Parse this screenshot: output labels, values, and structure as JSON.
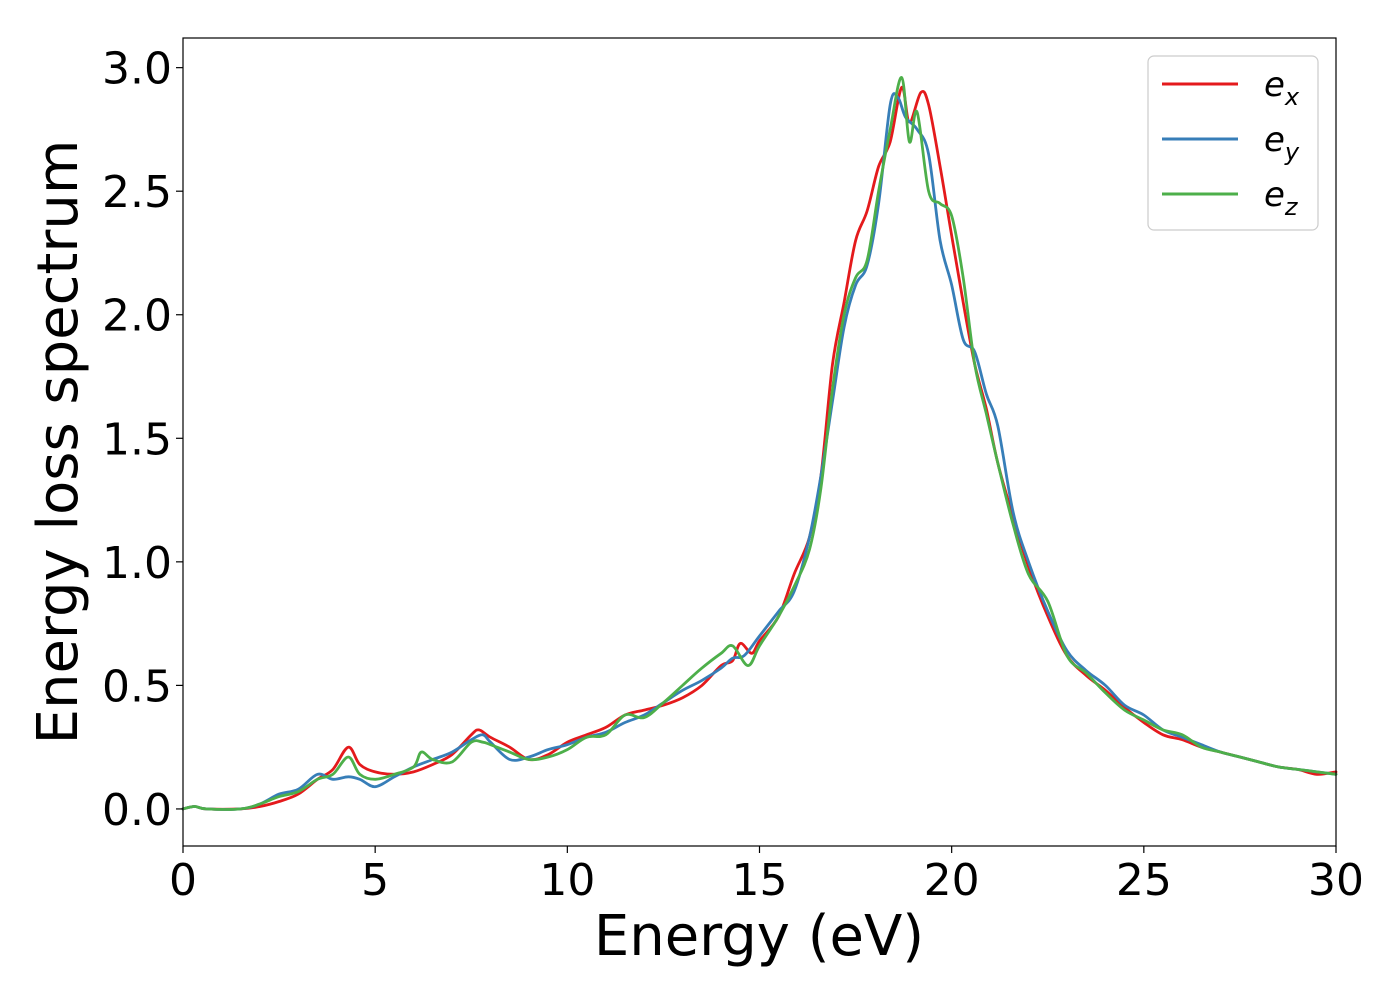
{
  "chart_data": {
    "type": "line",
    "title": "",
    "xlabel": "Energy (eV)",
    "ylabel": "Energy loss spectrum",
    "xlim": [
      0,
      30
    ],
    "ylim": [
      -0.15,
      3.12
    ],
    "xticks": [
      0,
      5,
      10,
      15,
      20,
      25,
      30
    ],
    "xtick_labels": [
      "0",
      "5",
      "10",
      "15",
      "20",
      "25",
      "30"
    ],
    "yticks": [
      0.0,
      0.5,
      1.0,
      1.5,
      2.0,
      2.5,
      3.0
    ],
    "ytick_labels": [
      "0.0",
      "0.5",
      "1.0",
      "1.5",
      "2.0",
      "2.5",
      "3.0"
    ],
    "grid": false,
    "legend_position": "top-right",
    "series": [
      {
        "name": "ex",
        "label_base": "e",
        "label_sub": "x",
        "color": "#e41a1c",
        "points": [
          [
            0,
            0.0
          ],
          [
            0.3,
            0.01
          ],
          [
            0.6,
            0.0
          ],
          [
            1.5,
            0.0
          ],
          [
            2.0,
            0.01
          ],
          [
            2.5,
            0.03
          ],
          [
            3.0,
            0.06
          ],
          [
            3.5,
            0.12
          ],
          [
            3.9,
            0.16
          ],
          [
            4.3,
            0.25
          ],
          [
            4.6,
            0.18
          ],
          [
            5.0,
            0.15
          ],
          [
            5.5,
            0.14
          ],
          [
            6.0,
            0.15
          ],
          [
            6.5,
            0.18
          ],
          [
            7.0,
            0.22
          ],
          [
            7.5,
            0.3
          ],
          [
            7.7,
            0.32
          ],
          [
            8.0,
            0.29
          ],
          [
            8.5,
            0.25
          ],
          [
            9.0,
            0.2
          ],
          [
            9.5,
            0.22
          ],
          [
            10.0,
            0.27
          ],
          [
            10.5,
            0.3
          ],
          [
            11.0,
            0.33
          ],
          [
            11.5,
            0.38
          ],
          [
            12.0,
            0.4
          ],
          [
            12.5,
            0.42
          ],
          [
            13.0,
            0.45
          ],
          [
            13.5,
            0.5
          ],
          [
            14.0,
            0.58
          ],
          [
            14.3,
            0.6
          ],
          [
            14.5,
            0.67
          ],
          [
            14.8,
            0.63
          ],
          [
            15.0,
            0.68
          ],
          [
            15.5,
            0.78
          ],
          [
            15.9,
            0.95
          ],
          [
            16.3,
            1.1
          ],
          [
            16.6,
            1.35
          ],
          [
            16.9,
            1.8
          ],
          [
            17.2,
            2.05
          ],
          [
            17.5,
            2.3
          ],
          [
            17.8,
            2.42
          ],
          [
            18.1,
            2.6
          ],
          [
            18.4,
            2.7
          ],
          [
            18.7,
            2.92
          ],
          [
            18.9,
            2.78
          ],
          [
            19.2,
            2.9
          ],
          [
            19.4,
            2.85
          ],
          [
            19.7,
            2.6
          ],
          [
            20.0,
            2.32
          ],
          [
            20.3,
            2.05
          ],
          [
            20.6,
            1.8
          ],
          [
            20.9,
            1.62
          ],
          [
            21.2,
            1.4
          ],
          [
            21.6,
            1.18
          ],
          [
            22.0,
            0.98
          ],
          [
            22.5,
            0.78
          ],
          [
            23.0,
            0.62
          ],
          [
            23.5,
            0.54
          ],
          [
            24.0,
            0.48
          ],
          [
            24.5,
            0.41
          ],
          [
            25.0,
            0.35
          ],
          [
            25.5,
            0.3
          ],
          [
            26.0,
            0.28
          ],
          [
            26.5,
            0.25
          ],
          [
            27.0,
            0.23
          ],
          [
            27.5,
            0.21
          ],
          [
            28.0,
            0.19
          ],
          [
            28.5,
            0.17
          ],
          [
            29.0,
            0.16
          ],
          [
            29.5,
            0.14
          ],
          [
            30.0,
            0.15
          ]
        ]
      },
      {
        "name": "ey",
        "label_base": "e",
        "label_sub": "y",
        "color": "#377eb8",
        "points": [
          [
            0,
            0.0
          ],
          [
            0.3,
            0.01
          ],
          [
            0.6,
            0.0
          ],
          [
            1.5,
            0.0
          ],
          [
            2.0,
            0.02
          ],
          [
            2.5,
            0.06
          ],
          [
            3.0,
            0.08
          ],
          [
            3.5,
            0.14
          ],
          [
            3.9,
            0.12
          ],
          [
            4.3,
            0.13
          ],
          [
            4.6,
            0.12
          ],
          [
            5.0,
            0.09
          ],
          [
            5.5,
            0.13
          ],
          [
            6.0,
            0.17
          ],
          [
            6.5,
            0.2
          ],
          [
            7.0,
            0.23
          ],
          [
            7.5,
            0.28
          ],
          [
            7.8,
            0.3
          ],
          [
            8.0,
            0.27
          ],
          [
            8.5,
            0.2
          ],
          [
            9.0,
            0.21
          ],
          [
            9.5,
            0.24
          ],
          [
            10.0,
            0.26
          ],
          [
            10.5,
            0.29
          ],
          [
            11.0,
            0.31
          ],
          [
            11.5,
            0.35
          ],
          [
            12.0,
            0.38
          ],
          [
            12.5,
            0.43
          ],
          [
            13.0,
            0.48
          ],
          [
            13.5,
            0.52
          ],
          [
            14.0,
            0.57
          ],
          [
            14.3,
            0.61
          ],
          [
            14.6,
            0.62
          ],
          [
            15.0,
            0.7
          ],
          [
            15.5,
            0.8
          ],
          [
            15.9,
            0.88
          ],
          [
            16.3,
            1.1
          ],
          [
            16.6,
            1.35
          ],
          [
            16.9,
            1.65
          ],
          [
            17.2,
            1.95
          ],
          [
            17.5,
            2.12
          ],
          [
            17.8,
            2.2
          ],
          [
            18.1,
            2.45
          ],
          [
            18.4,
            2.85
          ],
          [
            18.6,
            2.88
          ],
          [
            18.8,
            2.8
          ],
          [
            19.1,
            2.75
          ],
          [
            19.4,
            2.65
          ],
          [
            19.7,
            2.3
          ],
          [
            20.0,
            2.12
          ],
          [
            20.3,
            1.9
          ],
          [
            20.6,
            1.85
          ],
          [
            20.9,
            1.68
          ],
          [
            21.2,
            1.55
          ],
          [
            21.6,
            1.2
          ],
          [
            22.0,
            1.0
          ],
          [
            22.5,
            0.8
          ],
          [
            23.0,
            0.64
          ],
          [
            23.5,
            0.56
          ],
          [
            24.0,
            0.5
          ],
          [
            24.5,
            0.42
          ],
          [
            25.0,
            0.38
          ],
          [
            25.5,
            0.32
          ],
          [
            26.0,
            0.29
          ],
          [
            26.5,
            0.26
          ],
          [
            27.0,
            0.23
          ],
          [
            27.5,
            0.21
          ],
          [
            28.0,
            0.19
          ],
          [
            28.5,
            0.17
          ],
          [
            29.0,
            0.16
          ],
          [
            29.5,
            0.15
          ],
          [
            30.0,
            0.14
          ]
        ]
      },
      {
        "name": "ez",
        "label_base": "e",
        "label_sub": "z",
        "color": "#4daf4a",
        "points": [
          [
            0,
            0.0
          ],
          [
            0.3,
            0.01
          ],
          [
            0.6,
            0.0
          ],
          [
            1.5,
            0.0
          ],
          [
            2.0,
            0.02
          ],
          [
            2.5,
            0.05
          ],
          [
            3.0,
            0.07
          ],
          [
            3.5,
            0.12
          ],
          [
            3.9,
            0.14
          ],
          [
            4.3,
            0.21
          ],
          [
            4.6,
            0.14
          ],
          [
            5.0,
            0.12
          ],
          [
            5.5,
            0.14
          ],
          [
            6.0,
            0.17
          ],
          [
            6.2,
            0.23
          ],
          [
            6.5,
            0.2
          ],
          [
            7.0,
            0.19
          ],
          [
            7.5,
            0.27
          ],
          [
            7.8,
            0.27
          ],
          [
            8.0,
            0.26
          ],
          [
            8.5,
            0.23
          ],
          [
            9.0,
            0.2
          ],
          [
            9.5,
            0.21
          ],
          [
            10.0,
            0.24
          ],
          [
            10.5,
            0.29
          ],
          [
            11.0,
            0.3
          ],
          [
            11.5,
            0.38
          ],
          [
            12.0,
            0.37
          ],
          [
            12.5,
            0.43
          ],
          [
            13.0,
            0.5
          ],
          [
            13.5,
            0.57
          ],
          [
            14.0,
            0.63
          ],
          [
            14.3,
            0.66
          ],
          [
            14.7,
            0.58
          ],
          [
            15.0,
            0.66
          ],
          [
            15.5,
            0.78
          ],
          [
            15.9,
            0.9
          ],
          [
            16.3,
            1.05
          ],
          [
            16.6,
            1.3
          ],
          [
            16.9,
            1.7
          ],
          [
            17.2,
            2.0
          ],
          [
            17.5,
            2.15
          ],
          [
            17.8,
            2.22
          ],
          [
            18.1,
            2.5
          ],
          [
            18.4,
            2.75
          ],
          [
            18.7,
            2.96
          ],
          [
            18.9,
            2.7
          ],
          [
            19.1,
            2.82
          ],
          [
            19.4,
            2.5
          ],
          [
            19.7,
            2.45
          ],
          [
            20.0,
            2.4
          ],
          [
            20.3,
            2.15
          ],
          [
            20.6,
            1.8
          ],
          [
            20.9,
            1.6
          ],
          [
            21.2,
            1.4
          ],
          [
            21.6,
            1.15
          ],
          [
            22.0,
            0.95
          ],
          [
            22.5,
            0.84
          ],
          [
            23.0,
            0.62
          ],
          [
            23.5,
            0.55
          ],
          [
            24.0,
            0.47
          ],
          [
            24.5,
            0.4
          ],
          [
            25.0,
            0.36
          ],
          [
            25.5,
            0.32
          ],
          [
            26.0,
            0.3
          ],
          [
            26.5,
            0.25
          ],
          [
            27.0,
            0.23
          ],
          [
            27.5,
            0.21
          ],
          [
            28.0,
            0.19
          ],
          [
            28.5,
            0.17
          ],
          [
            29.0,
            0.16
          ],
          [
            29.5,
            0.15
          ],
          [
            30.0,
            0.14
          ]
        ]
      }
    ]
  }
}
